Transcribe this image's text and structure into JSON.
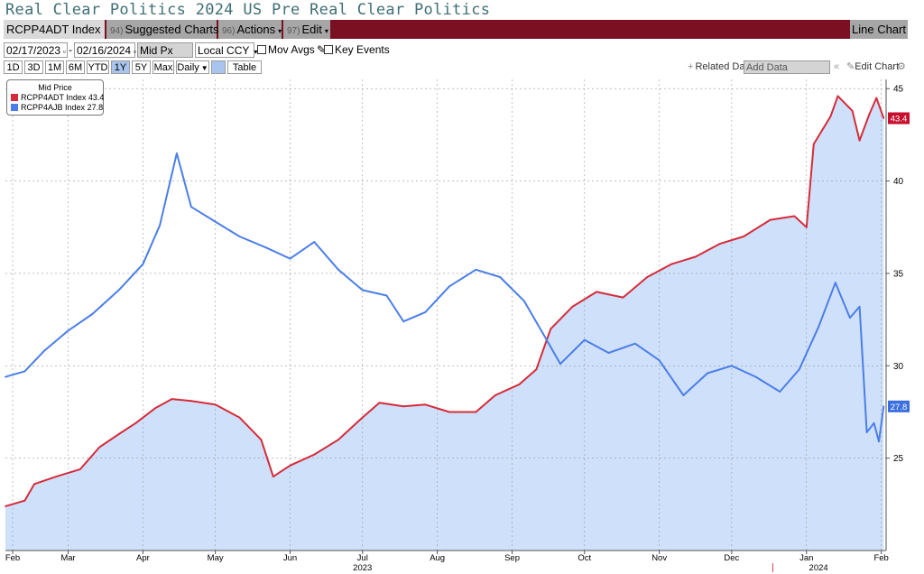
{
  "header": {
    "title": "Real Clear Politics 2024 US Pre Real Clear Politics",
    "ticker": "RCPP4ADT Index",
    "suggested_num": "94)",
    "suggested": "Suggested Charts",
    "actions_num": "96)",
    "actions": "Actions",
    "edit_num": "97)",
    "edit": "Edit",
    "line_chart": "Line Chart"
  },
  "controls": {
    "start_date": "02/17/2023",
    "end_date": "02/16/2024",
    "field": "Mid Px",
    "currency": "Local CCY",
    "mov_avgs": "Mov Avgs",
    "key_events": "Key Events",
    "ranges": [
      "1D",
      "3D",
      "1M",
      "6M",
      "YTD",
      "1Y",
      "5Y",
      "Max"
    ],
    "selected_range": "1Y",
    "period": "Daily",
    "table": "Table",
    "related": "Related Dat",
    "add_data": "Add Data",
    "edit_chart": "Edit Chart"
  },
  "colors": {
    "red": "#d52b3a",
    "blue": "#4b7ee6",
    "fill": "#cfe0fb",
    "red_label": "#c8102e",
    "blue_label": "#3b6fe0"
  },
  "chart_data": {
    "type": "line",
    "title": "",
    "legend_title": "Mid Price",
    "legend_position": "top-left",
    "grid": true,
    "ylim": [
      20,
      45.5
    ],
    "yticks": [
      25,
      30,
      35,
      40,
      45
    ],
    "x_tick_labels": [
      "Feb",
      "Mar",
      "Apr",
      "May",
      "Jun",
      "Jul",
      "Aug",
      "Sep",
      "Oct",
      "Nov",
      "Dec",
      "Jan",
      "Feb"
    ],
    "x_tick_dates": [
      "2023-02-20",
      "2023-03-15",
      "2023-04-15",
      "2023-05-15",
      "2023-06-15",
      "2023-07-15",
      "2023-08-15",
      "2023-09-15",
      "2023-10-15",
      "2023-11-15",
      "2023-12-15",
      "2024-01-15",
      "2024-02-15"
    ],
    "year_labels": [
      {
        "text": "2023",
        "date": "2023-07-15"
      },
      {
        "text": "2024",
        "date": "2024-01-20"
      }
    ],
    "x_range": [
      "2023-02-17",
      "2024-02-17"
    ],
    "series": [
      {
        "name": "RCPP4ADT Index",
        "last": "43.4",
        "color": "#d52b3a",
        "filled": true,
        "points": [
          [
            "2023-02-17",
            22.4
          ],
          [
            "2023-02-25",
            22.7
          ],
          [
            "2023-03-01",
            23.6
          ],
          [
            "2023-03-10",
            24.0
          ],
          [
            "2023-03-20",
            24.4
          ],
          [
            "2023-03-28",
            25.6
          ],
          [
            "2023-04-05",
            26.3
          ],
          [
            "2023-04-12",
            26.9
          ],
          [
            "2023-04-20",
            27.7
          ],
          [
            "2023-04-27",
            28.2
          ],
          [
            "2023-05-05",
            28.1
          ],
          [
            "2023-05-15",
            27.9
          ],
          [
            "2023-05-25",
            27.2
          ],
          [
            "2023-06-03",
            26.0
          ],
          [
            "2023-06-08",
            24.0
          ],
          [
            "2023-06-15",
            24.6
          ],
          [
            "2023-06-25",
            25.2
          ],
          [
            "2023-07-05",
            26.0
          ],
          [
            "2023-07-15",
            27.2
          ],
          [
            "2023-07-22",
            28.0
          ],
          [
            "2023-08-01",
            27.8
          ],
          [
            "2023-08-10",
            27.9
          ],
          [
            "2023-08-20",
            27.5
          ],
          [
            "2023-08-31",
            27.5
          ],
          [
            "2023-09-08",
            28.4
          ],
          [
            "2023-09-18",
            29.0
          ],
          [
            "2023-09-25",
            29.8
          ],
          [
            "2023-10-01",
            32.0
          ],
          [
            "2023-10-10",
            33.2
          ],
          [
            "2023-10-20",
            34.0
          ],
          [
            "2023-10-31",
            33.7
          ],
          [
            "2023-11-10",
            34.8
          ],
          [
            "2023-11-20",
            35.5
          ],
          [
            "2023-11-30",
            35.9
          ],
          [
            "2023-12-10",
            36.6
          ],
          [
            "2023-12-20",
            37.0
          ],
          [
            "2023-12-31",
            37.9
          ],
          [
            "2024-01-10",
            38.1
          ],
          [
            "2024-01-15",
            37.5
          ],
          [
            "2024-01-18",
            42.0
          ],
          [
            "2024-01-25",
            43.5
          ],
          [
            "2024-01-28",
            44.6
          ],
          [
            "2024-02-03",
            43.8
          ],
          [
            "2024-02-06",
            42.2
          ],
          [
            "2024-02-10",
            43.6
          ],
          [
            "2024-02-13",
            44.5
          ],
          [
            "2024-02-16",
            43.4
          ]
        ]
      },
      {
        "name": "RCPP4AJB Index",
        "last": "27.8",
        "color": "#4b7ee6",
        "filled": false,
        "points": [
          [
            "2023-02-17",
            29.4
          ],
          [
            "2023-02-25",
            29.7
          ],
          [
            "2023-03-05",
            30.8
          ],
          [
            "2023-03-15",
            31.9
          ],
          [
            "2023-03-25",
            32.8
          ],
          [
            "2023-04-05",
            34.1
          ],
          [
            "2023-04-15",
            35.5
          ],
          [
            "2023-04-22",
            37.6
          ],
          [
            "2023-04-29",
            41.5
          ],
          [
            "2023-05-05",
            38.6
          ],
          [
            "2023-05-15",
            37.8
          ],
          [
            "2023-05-25",
            37.0
          ],
          [
            "2023-06-05",
            36.4
          ],
          [
            "2023-06-15",
            35.8
          ],
          [
            "2023-06-25",
            36.7
          ],
          [
            "2023-07-05",
            35.2
          ],
          [
            "2023-07-15",
            34.1
          ],
          [
            "2023-07-25",
            33.8
          ],
          [
            "2023-08-01",
            32.4
          ],
          [
            "2023-08-10",
            32.9
          ],
          [
            "2023-08-20",
            34.3
          ],
          [
            "2023-08-31",
            35.2
          ],
          [
            "2023-09-10",
            34.8
          ],
          [
            "2023-09-20",
            33.5
          ],
          [
            "2023-09-28",
            31.7
          ],
          [
            "2023-10-05",
            30.1
          ],
          [
            "2023-10-15",
            31.4
          ],
          [
            "2023-10-25",
            30.7
          ],
          [
            "2023-11-05",
            31.2
          ],
          [
            "2023-11-15",
            30.3
          ],
          [
            "2023-11-25",
            28.4
          ],
          [
            "2023-12-05",
            29.6
          ],
          [
            "2023-12-15",
            30.0
          ],
          [
            "2023-12-25",
            29.4
          ],
          [
            "2024-01-04",
            28.6
          ],
          [
            "2024-01-12",
            29.8
          ],
          [
            "2024-01-20",
            32.1
          ],
          [
            "2024-01-27",
            34.5
          ],
          [
            "2024-02-02",
            32.6
          ],
          [
            "2024-02-06",
            33.2
          ],
          [
            "2024-02-09",
            26.4
          ],
          [
            "2024-02-12",
            26.9
          ],
          [
            "2024-02-14",
            25.9
          ],
          [
            "2024-02-16",
            27.8
          ]
        ]
      }
    ]
  }
}
